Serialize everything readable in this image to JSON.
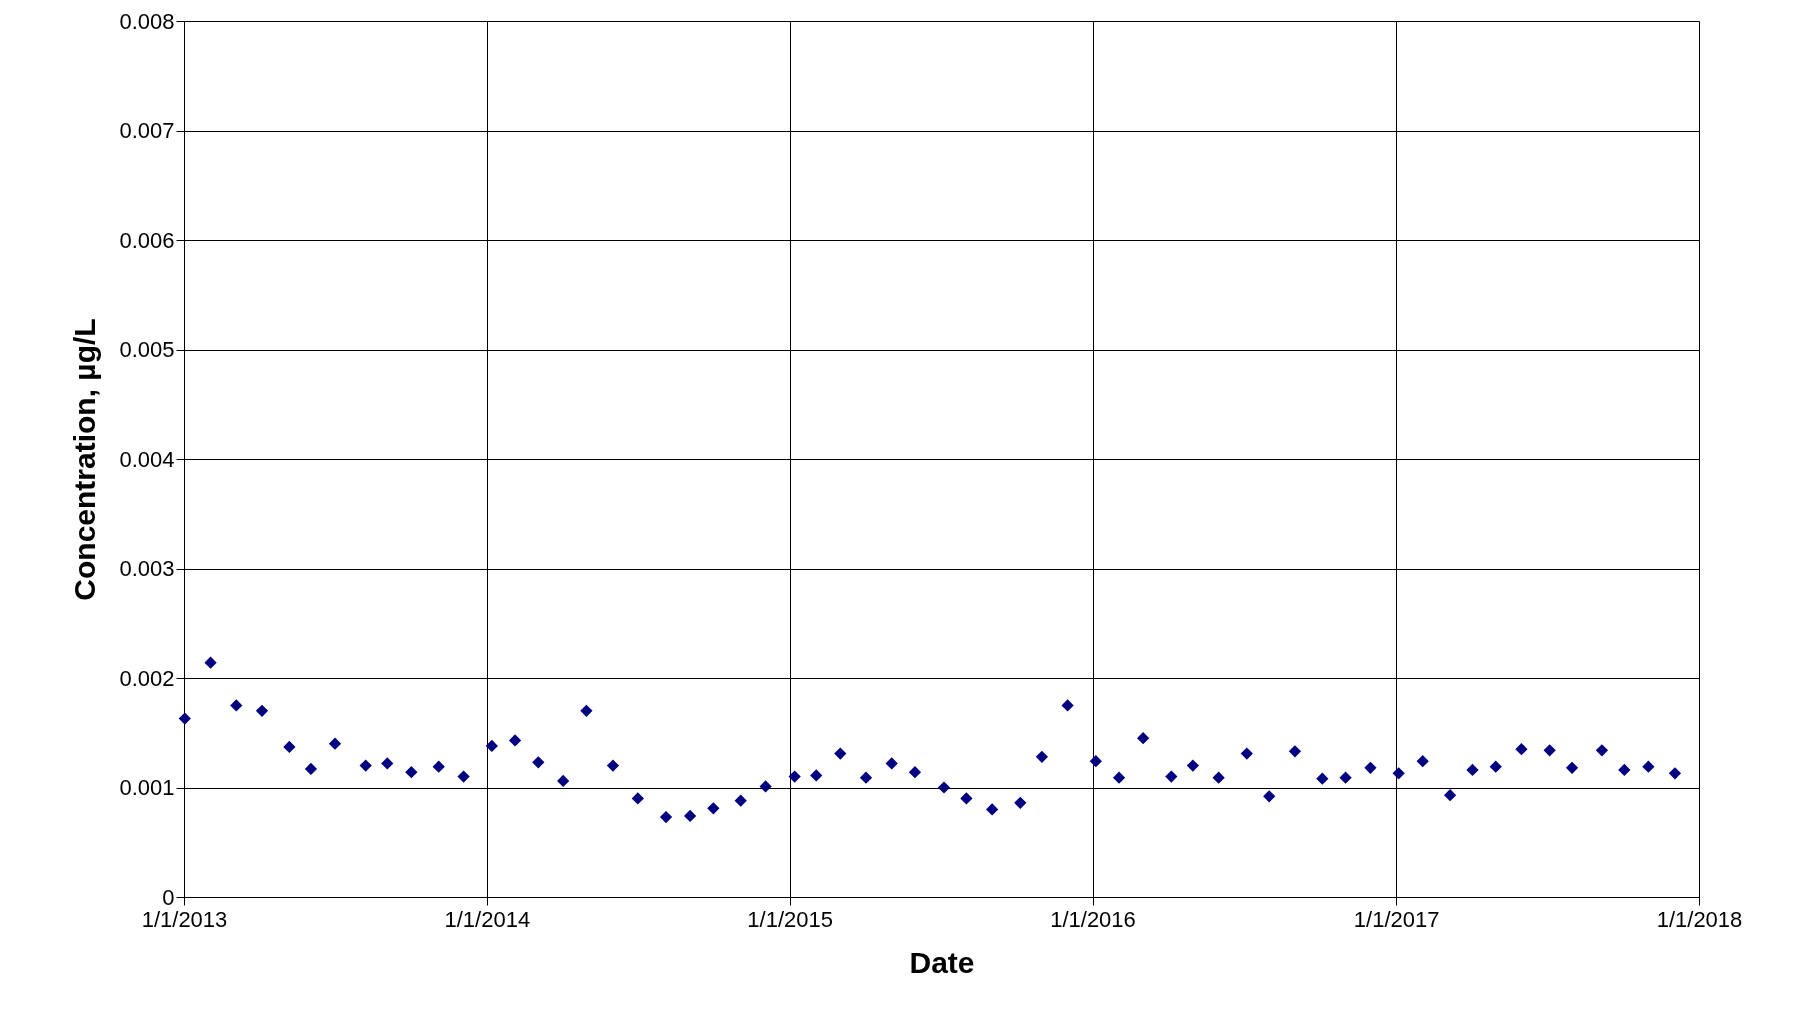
{
  "chart_data": {
    "type": "scatter",
    "xlabel": "Date",
    "ylabel": "Concentration, µg/L",
    "x": [
      "2013-01-02",
      "2013-02-02",
      "2013-03-05",
      "2013-04-05",
      "2013-05-08",
      "2013-06-03",
      "2013-07-02",
      "2013-08-08",
      "2013-09-03",
      "2013-10-02",
      "2013-11-04",
      "2013-12-04",
      "2014-01-07",
      "2014-02-04",
      "2014-03-04",
      "2014-04-03",
      "2014-05-01",
      "2014-06-02",
      "2014-07-02",
      "2014-08-05",
      "2014-09-03",
      "2014-10-01",
      "2014-11-03",
      "2014-12-03",
      "2015-01-07",
      "2015-02-02",
      "2015-03-03",
      "2015-04-03",
      "2015-05-04",
      "2015-06-01",
      "2015-07-06",
      "2015-08-02",
      "2015-09-02",
      "2015-10-06",
      "2015-11-01",
      "2015-12-02",
      "2016-01-05",
      "2016-02-02",
      "2016-03-02",
      "2016-04-05",
      "2016-05-01",
      "2016-06-01",
      "2016-07-05",
      "2016-08-01",
      "2016-09-01",
      "2016-10-04",
      "2016-11-01",
      "2016-12-01",
      "2017-01-04",
      "2017-02-02",
      "2017-03-07",
      "2017-04-03",
      "2017-05-01",
      "2017-06-01",
      "2017-07-05",
      "2017-08-01",
      "2017-09-06",
      "2017-10-03",
      "2017-11-01",
      "2017-12-03"
    ],
    "series": [
      {
        "color": "#000080",
        "values": [
          0.00163,
          0.00214,
          0.00175,
          0.0017,
          0.00137,
          0.00117,
          0.0014,
          0.0012,
          0.00122,
          0.00114,
          0.00119,
          0.0011,
          0.00138,
          0.00143,
          0.00123,
          0.00106,
          0.0017,
          0.0012,
          0.0009,
          0.00073,
          0.00074,
          0.00081,
          0.00088,
          0.00101,
          0.0011,
          0.00111,
          0.00131,
          0.00109,
          0.00122,
          0.00114,
          0.001,
          0.0009,
          0.0008,
          0.00086,
          0.00128,
          0.00175,
          0.00124,
          0.00109,
          0.00145,
          0.0011,
          0.0012,
          0.00109,
          0.00131,
          0.00092,
          0.00133,
          0.00108,
          0.00109,
          0.00118,
          0.00113,
          0.00124,
          0.00093,
          0.00116,
          0.00119,
          0.00135,
          0.00134,
          0.00118,
          0.00134,
          0.00116,
          0.00119,
          0.00113
        ]
      }
    ],
    "xlim": [
      "2013-01-01",
      "2018-01-01"
    ],
    "xticks": [
      {
        "value": "2013-01-01",
        "label": "1/1/2013"
      },
      {
        "value": "2014-01-01",
        "label": "1/1/2014"
      },
      {
        "value": "2015-01-01",
        "label": "1/1/2015"
      },
      {
        "value": "2016-01-01",
        "label": "1/1/2016"
      },
      {
        "value": "2017-01-01",
        "label": "1/1/2017"
      },
      {
        "value": "2018-01-01",
        "label": "1/1/2018"
      }
    ],
    "ylim": [
      0,
      0.008
    ],
    "yticks": [
      0,
      0.001,
      0.002,
      0.003,
      0.004,
      0.005,
      0.006,
      0.007,
      0.008
    ],
    "grid": true,
    "marker": "diamond"
  }
}
